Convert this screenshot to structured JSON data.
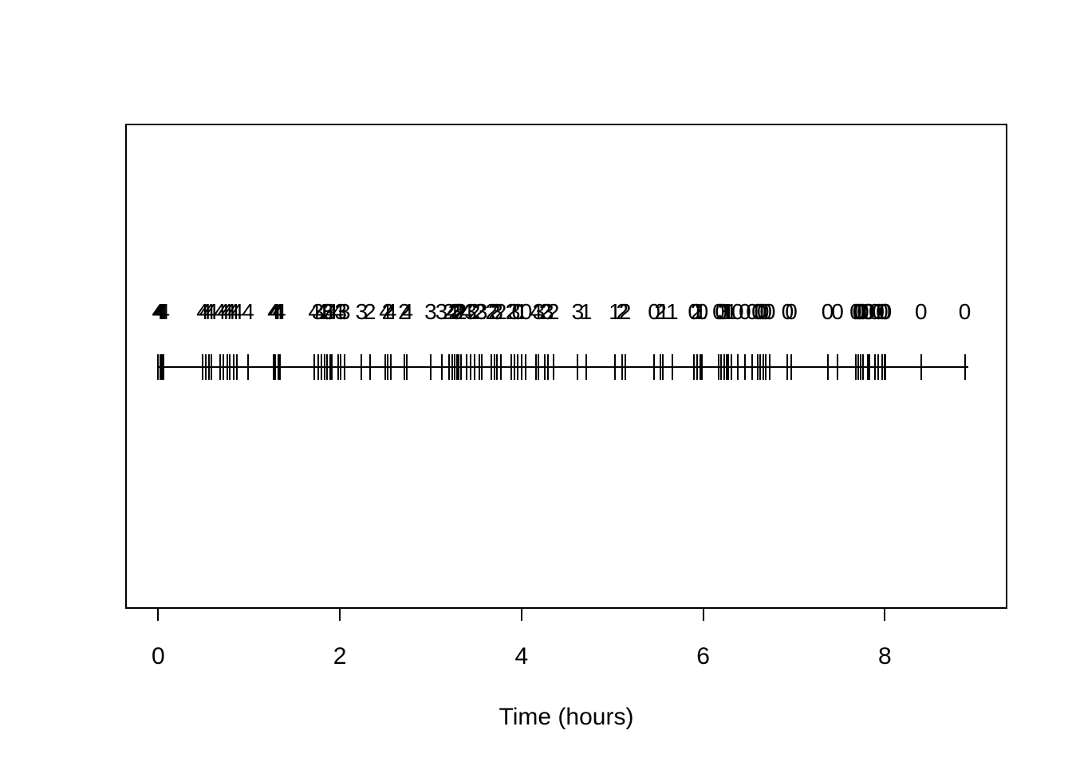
{
  "page": {
    "background": "#ffffff",
    "foreground": "#000000"
  },
  "chart_data": {
    "type": "scatter",
    "subtype": "event-rug-timeline",
    "title": "",
    "xlabel": "Time (hours)",
    "ylabel": "",
    "xlim": [
      -0.36,
      9.35
    ],
    "x_ticks": [
      0,
      2,
      4,
      6,
      8
    ],
    "grid": false,
    "legend": null,
    "description": "Event times shown as vertical tick marks on a horizontal timeline, each event annotated above with an integer mark (4 early, decreasing to 0 late).",
    "events": [
      {
        "t": 0.0,
        "label": "4"
      },
      {
        "t": 0.02,
        "label": "4"
      },
      {
        "t": 0.04,
        "label": "4"
      },
      {
        "t": 0.06,
        "label": "4"
      },
      {
        "t": 0.49,
        "label": "4"
      },
      {
        "t": 0.52,
        "label": "4"
      },
      {
        "t": 0.56,
        "label": "4"
      },
      {
        "t": 0.59,
        "label": "4"
      },
      {
        "t": 0.68,
        "label": "4"
      },
      {
        "t": 0.72,
        "label": "4"
      },
      {
        "t": 0.76,
        "label": "4"
      },
      {
        "t": 0.79,
        "label": "4"
      },
      {
        "t": 0.83,
        "label": "4"
      },
      {
        "t": 0.87,
        "label": "4"
      },
      {
        "t": 0.99,
        "label": "4"
      },
      {
        "t": 1.27,
        "label": "4"
      },
      {
        "t": 1.29,
        "label": "4"
      },
      {
        "t": 1.32,
        "label": "4"
      },
      {
        "t": 1.34,
        "label": "4"
      },
      {
        "t": 1.72,
        "label": "4"
      },
      {
        "t": 1.76,
        "label": "3"
      },
      {
        "t": 1.8,
        "label": "4"
      },
      {
        "t": 1.83,
        "label": "1"
      },
      {
        "t": 1.86,
        "label": "3"
      },
      {
        "t": 1.89,
        "label": "3"
      },
      {
        "t": 1.91,
        "label": "4"
      },
      {
        "t": 1.98,
        "label": "4"
      },
      {
        "t": 2.01,
        "label": "3"
      },
      {
        "t": 2.05,
        "label": "3"
      },
      {
        "t": 2.24,
        "label": "3"
      },
      {
        "t": 2.33,
        "label": "2"
      },
      {
        "t": 2.5,
        "label": "4"
      },
      {
        "t": 2.53,
        "label": "2"
      },
      {
        "t": 2.56,
        "label": "4"
      },
      {
        "t": 2.71,
        "label": "2"
      },
      {
        "t": 2.74,
        "label": "4"
      },
      {
        "t": 3.0,
        "label": "3"
      },
      {
        "t": 3.12,
        "label": "3"
      },
      {
        "t": 3.2,
        "label": "2"
      },
      {
        "t": 3.24,
        "label": "4"
      },
      {
        "t": 3.26,
        "label": "2"
      },
      {
        "t": 3.29,
        "label": "3"
      },
      {
        "t": 3.31,
        "label": "2"
      },
      {
        "t": 3.33,
        "label": "2"
      },
      {
        "t": 3.4,
        "label": "4"
      },
      {
        "t": 3.44,
        "label": "3"
      },
      {
        "t": 3.48,
        "label": "2"
      },
      {
        "t": 3.54,
        "label": "2"
      },
      {
        "t": 3.56,
        "label": "3"
      },
      {
        "t": 3.67,
        "label": "2"
      },
      {
        "t": 3.7,
        "label": "2"
      },
      {
        "t": 3.73,
        "label": "3"
      },
      {
        "t": 3.77,
        "label": "2"
      },
      {
        "t": 3.89,
        "label": "2"
      },
      {
        "t": 3.92,
        "label": "3"
      },
      {
        "t": 3.96,
        "label": "0"
      },
      {
        "t": 4.0,
        "label": "1"
      },
      {
        "t": 4.05,
        "label": "0"
      },
      {
        "t": 4.16,
        "label": "4"
      },
      {
        "t": 4.19,
        "label": "3"
      },
      {
        "t": 4.26,
        "label": "2"
      },
      {
        "t": 4.29,
        "label": "3"
      },
      {
        "t": 4.35,
        "label": "2"
      },
      {
        "t": 4.62,
        "label": "3"
      },
      {
        "t": 4.71,
        "label": "1"
      },
      {
        "t": 5.03,
        "label": "1"
      },
      {
        "t": 5.11,
        "label": "2"
      },
      {
        "t": 5.14,
        "label": "2"
      },
      {
        "t": 5.46,
        "label": "0"
      },
      {
        "t": 5.53,
        "label": "2"
      },
      {
        "t": 5.56,
        "label": "1"
      },
      {
        "t": 5.66,
        "label": "1"
      },
      {
        "t": 5.9,
        "label": "0"
      },
      {
        "t": 5.93,
        "label": "2"
      },
      {
        "t": 5.97,
        "label": "1"
      },
      {
        "t": 5.99,
        "label": "0"
      },
      {
        "t": 6.17,
        "label": "0"
      },
      {
        "t": 6.2,
        "label": "0"
      },
      {
        "t": 6.23,
        "label": "3"
      },
      {
        "t": 6.26,
        "label": "1"
      },
      {
        "t": 6.28,
        "label": "1"
      },
      {
        "t": 6.31,
        "label": "1"
      },
      {
        "t": 6.38,
        "label": "0"
      },
      {
        "t": 6.46,
        "label": "0"
      },
      {
        "t": 6.54,
        "label": "0"
      },
      {
        "t": 6.6,
        "label": "0"
      },
      {
        "t": 6.63,
        "label": "0"
      },
      {
        "t": 6.66,
        "label": "0"
      },
      {
        "t": 6.69,
        "label": "0"
      },
      {
        "t": 6.73,
        "label": "0"
      },
      {
        "t": 6.93,
        "label": "0"
      },
      {
        "t": 6.97,
        "label": "0"
      },
      {
        "t": 7.37,
        "label": "0"
      },
      {
        "t": 7.48,
        "label": "0"
      },
      {
        "t": 7.68,
        "label": "0"
      },
      {
        "t": 7.71,
        "label": "0"
      },
      {
        "t": 7.73,
        "label": "0"
      },
      {
        "t": 7.76,
        "label": "0"
      },
      {
        "t": 7.81,
        "label": "0"
      },
      {
        "t": 7.83,
        "label": "0"
      },
      {
        "t": 7.89,
        "label": "0"
      },
      {
        "t": 7.93,
        "label": "0"
      },
      {
        "t": 7.97,
        "label": "0"
      },
      {
        "t": 8.0,
        "label": "0"
      },
      {
        "t": 8.01,
        "label": "0"
      },
      {
        "t": 8.4,
        "label": "0"
      },
      {
        "t": 8.88,
        "label": "0"
      }
    ]
  }
}
